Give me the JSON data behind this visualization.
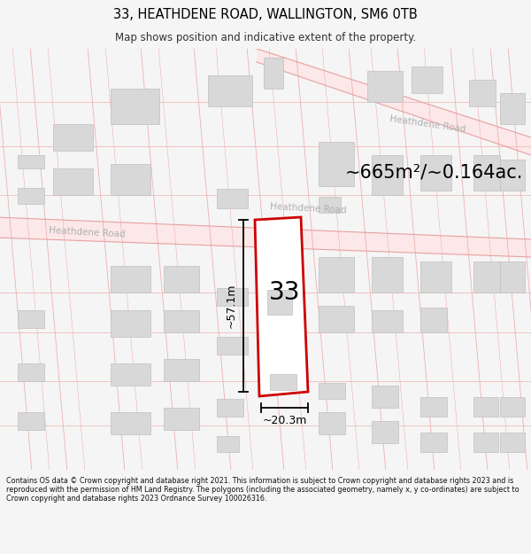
{
  "title": "33, HEATHDENE ROAD, WALLINGTON, SM6 0TB",
  "subtitle": "Map shows position and indicative extent of the property.",
  "area_text": "~665m²/~0.164ac.",
  "property_number": "33",
  "dim_vertical": "~57.1m",
  "dim_horizontal": "~20.3m",
  "footer": "Contains OS data © Crown copyright and database right 2021. This information is subject to Crown copyright and database rights 2023 and is reproduced with the permission of HM Land Registry. The polygons (including the associated geometry, namely x, y co-ordinates) are subject to Crown copyright and database rights 2023 Ordnance Survey 100026316.",
  "bg_color": "#f5f5f5",
  "map_bg": "#ffffff",
  "road_fill": "#fce8e8",
  "road_line": "#e8a0a0",
  "grid_line": "#f0b0b0",
  "building_fill": "#d8d8d8",
  "building_edge": "#c0c0c0",
  "property_fill": "#ffffff",
  "property_edge": "#cc0000",
  "road_label_color": "#b0b0b0",
  "title_color": "#000000",
  "text_color": "#333333",
  "footer_color": "#111111"
}
